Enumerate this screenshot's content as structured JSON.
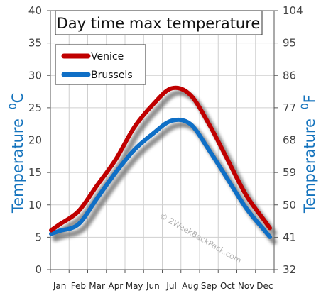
{
  "chart_data": {
    "type": "line",
    "title": "Day time max temperature",
    "categories": [
      "Jan",
      "Feb",
      "Mar",
      "Apr",
      "May",
      "Jun",
      "Jul",
      "Aug",
      "Sep",
      "Oct",
      "Nov",
      "Dec"
    ],
    "series": [
      {
        "name": "Venice",
        "color": "#c00000",
        "values": [
          7,
          9,
          13,
          17,
          22,
          25.5,
          28,
          27,
          22.5,
          17,
          11.5,
          7.5
        ]
      },
      {
        "name": "Brussels",
        "color": "#0f6fc6",
        "values": [
          6,
          7,
          11,
          15,
          18.5,
          21,
          23,
          22.5,
          18.5,
          14,
          9.5,
          6
        ]
      }
    ],
    "ylim": [
      0,
      40
    ],
    "yticks": [
      0,
      5,
      10,
      15,
      20,
      25,
      30,
      35,
      40
    ],
    "y2ticks": [
      "32",
      "41",
      "50",
      "59",
      "68",
      "77",
      "86",
      "95",
      "104"
    ],
    "ylabel": "Temperature",
    "ylabel_unit": "0C",
    "y2label": "Temperature",
    "y2label_unit": "0F",
    "grid": true,
    "legend_position": "top-left",
    "watermark": "© 2WeekBackPack.com"
  }
}
